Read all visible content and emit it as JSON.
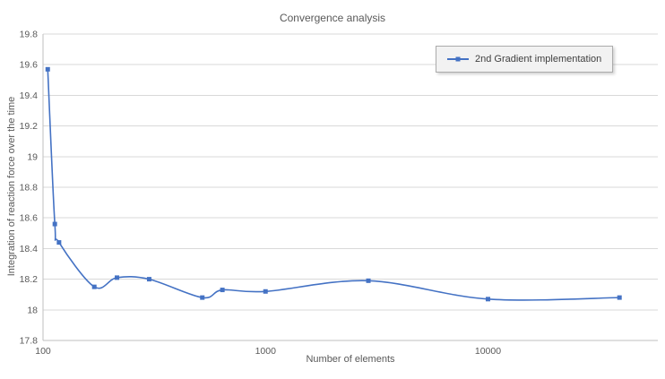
{
  "chart_data": {
    "type": "line",
    "title": "Convergence analysis",
    "xlabel": "Number of elements",
    "ylabel": "Integration of reaction force over the time",
    "x_scale": "log",
    "xlim": [
      100,
      58000
    ],
    "xticks": [
      100,
      1000,
      10000
    ],
    "ylim": [
      17.8,
      19.8
    ],
    "ytick_step": 0.2,
    "grid": "horizontal",
    "legend": {
      "position": "top-right",
      "entries": [
        "2nd Gradient implementation"
      ]
    },
    "series": [
      {
        "name": "2nd Gradient implementation",
        "color": "#4472c4",
        "marker": "square",
        "points": [
          {
            "x": 105,
            "y": 19.57
          },
          {
            "x": 113,
            "y": 18.56
          },
          {
            "x": 118,
            "y": 18.44
          },
          {
            "x": 170,
            "y": 18.15
          },
          {
            "x": 215,
            "y": 18.21
          },
          {
            "x": 300,
            "y": 18.2
          },
          {
            "x": 520,
            "y": 18.08
          },
          {
            "x": 640,
            "y": 18.13
          },
          {
            "x": 1000,
            "y": 18.12
          },
          {
            "x": 2900,
            "y": 18.19
          },
          {
            "x": 10000,
            "y": 18.07
          },
          {
            "x": 39000,
            "y": 18.08
          }
        ]
      }
    ],
    "colors": {
      "grid": "#d9d9d9",
      "axis": "#bfbfbf",
      "text": "#595959",
      "background": "#ffffff",
      "legend_bg": "#f2f2f2",
      "legend_border": "#ababab",
      "series_line": "#4472c4"
    }
  }
}
